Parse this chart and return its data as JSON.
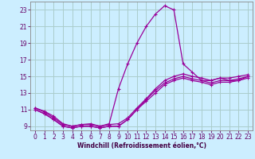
{
  "xlabel": "Windchill (Refroidissement éolien,°C)",
  "background_color": "#cceeff",
  "grid_color": "#aacccc",
  "line_color": "#990099",
  "xlim": [
    -0.5,
    23.5
  ],
  "ylim": [
    8.5,
    24.0
  ],
  "xticks": [
    0,
    1,
    2,
    3,
    4,
    5,
    6,
    7,
    8,
    9,
    10,
    11,
    12,
    13,
    14,
    15,
    16,
    17,
    18,
    19,
    20,
    21,
    22,
    23
  ],
  "yticks": [
    9,
    11,
    13,
    15,
    17,
    19,
    21,
    23
  ],
  "curves": [
    {
      "x": [
        0,
        1,
        2,
        3,
        4,
        5,
        6,
        7,
        8,
        9,
        10,
        11,
        12,
        13,
        14,
        15,
        16,
        17,
        18,
        19,
        20,
        21,
        22,
        23
      ],
      "y": [
        11.2,
        10.7,
        10.0,
        9.2,
        9.0,
        9.2,
        9.3,
        9.0,
        9.2,
        9.3,
        10.0,
        11.2,
        12.3,
        13.5,
        14.5,
        15.0,
        15.3,
        15.0,
        14.8,
        14.5,
        14.8,
        14.8,
        15.0,
        15.2
      ]
    },
    {
      "x": [
        0,
        1,
        2,
        3,
        4,
        5,
        6,
        7,
        8,
        9,
        10,
        11,
        12,
        13,
        14,
        15,
        16,
        17,
        18,
        19,
        20,
        21,
        22,
        23
      ],
      "y": [
        11.0,
        10.5,
        9.8,
        9.0,
        8.8,
        9.0,
        9.0,
        8.8,
        9.0,
        9.0,
        9.8,
        11.0,
        12.2,
        13.3,
        14.2,
        14.7,
        15.0,
        14.7,
        14.5,
        14.2,
        14.5,
        14.5,
        14.7,
        15.0
      ]
    },
    {
      "x": [
        0,
        1,
        2,
        3,
        4,
        5,
        6,
        7,
        8,
        9,
        10,
        11,
        12,
        13,
        14,
        15,
        16,
        17,
        18,
        19,
        20,
        21,
        22,
        23
      ],
      "y": [
        11.0,
        10.5,
        9.8,
        9.0,
        8.8,
        9.0,
        9.0,
        8.8,
        9.0,
        9.0,
        9.8,
        11.0,
        12.0,
        13.0,
        14.0,
        14.5,
        14.8,
        14.5,
        14.3,
        14.0,
        14.3,
        14.3,
        14.5,
        14.8
      ]
    },
    {
      "x": [
        0,
        1,
        2,
        3,
        4,
        5,
        6,
        7,
        8,
        9,
        10,
        11,
        12,
        13,
        14,
        15,
        16,
        17,
        18,
        19,
        20,
        21,
        22,
        23
      ],
      "y": [
        11.2,
        10.8,
        10.2,
        9.3,
        9.0,
        9.2,
        9.2,
        9.0,
        9.3,
        13.5,
        16.5,
        19.0,
        21.0,
        22.5,
        23.5,
        23.0,
        16.5,
        15.5,
        14.5,
        14.5,
        14.8,
        14.5,
        14.5,
        15.0
      ]
    }
  ]
}
